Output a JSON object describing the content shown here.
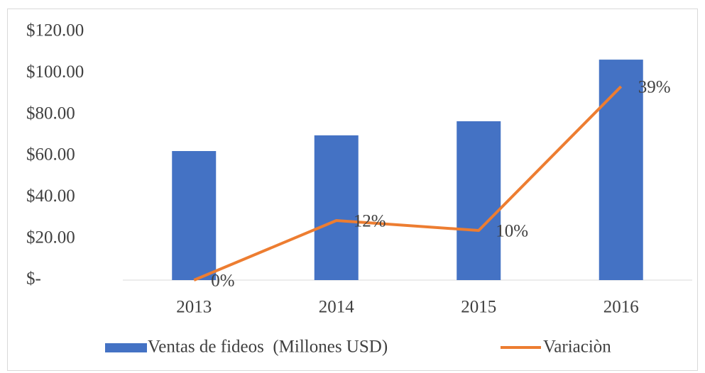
{
  "chart_data": {
    "type": "bar_line",
    "categories": [
      "2013",
      "2014",
      "2015",
      "2016"
    ],
    "series": [
      {
        "name": "Ventas de fideos  (Millones USD)",
        "color": "#4472c4",
        "type": "bar",
        "values": [
          62.4,
          70,
          76.8,
          106.6
        ]
      },
      {
        "name": "Variaciòn",
        "color": "#ed7d31",
        "type": "line",
        "axis": "y2",
        "values": [
          0,
          12,
          10,
          39
        ],
        "value_labels": [
          "0%",
          "12%",
          "10%",
          "39%"
        ]
      }
    ],
    "ylim": [
      0,
      120
    ],
    "yticks": [
      {
        "value": 0,
        "label": "$-"
      },
      {
        "value": 20,
        "label": "$20.00"
      },
      {
        "value": 40,
        "label": "$40.00"
      },
      {
        "value": 60,
        "label": "$60.00"
      },
      {
        "value": 80,
        "label": "$80.00"
      },
      {
        "value": 100,
        "label": "$100.00"
      },
      {
        "value": 120,
        "label": "$120.00"
      }
    ],
    "y2lim": [
      0,
      50
    ],
    "grid": false,
    "legend": "bottom"
  }
}
